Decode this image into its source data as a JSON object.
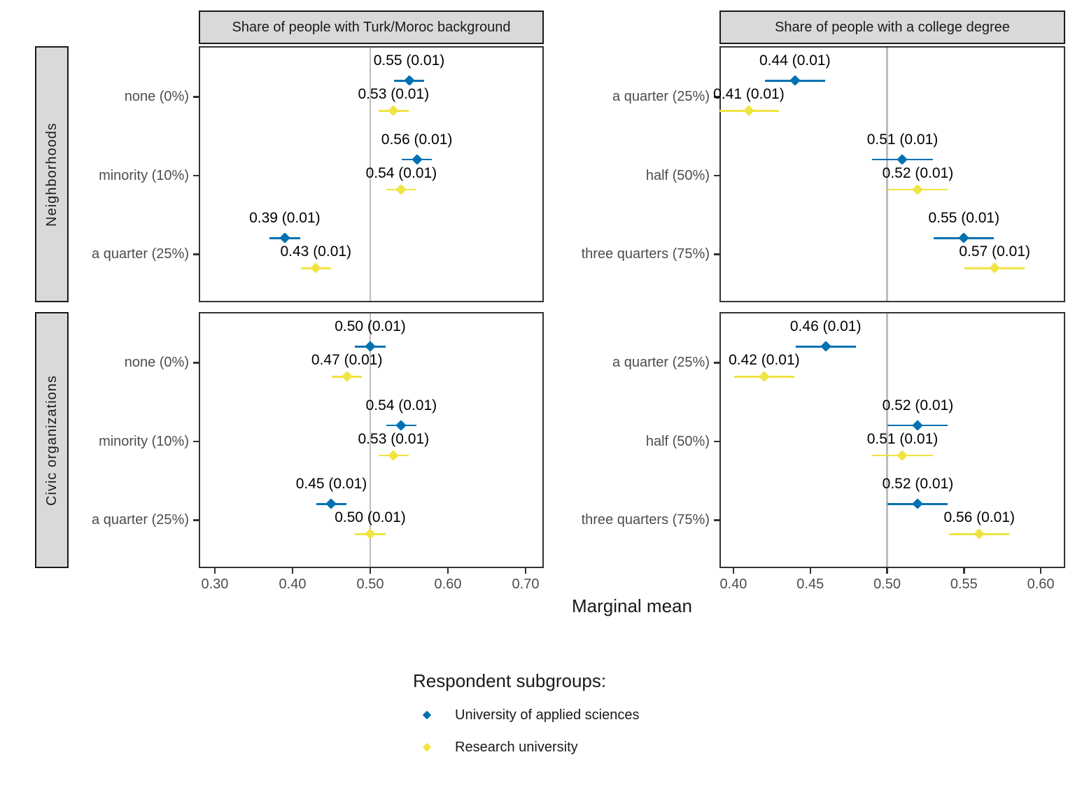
{
  "figure": {
    "x_axis_label": "Marginal mean",
    "facet_columns": [
      "Share of people with Turk/Moroc background",
      "Share of people with a college degree"
    ],
    "facet_rows": [
      "Neighborhoods",
      "Civic organizations"
    ],
    "colors": {
      "applied_sciences_blue": "#0072B2",
      "research_university_yellow": "#F0E442",
      "reference_line_gray": "#BDBDBD",
      "strip_fill": "#D9D9D9",
      "panel_border": "#333333",
      "axis_text": "#4D4D4D"
    },
    "legend": {
      "title": "Respondent subgroups:",
      "items": [
        {
          "label": "University of applied sciences",
          "color": "#0072B2"
        },
        {
          "label": "Research university",
          "color": "#F0E442"
        }
      ]
    }
  },
  "chart_data": [
    {
      "type": "scatter",
      "facet_row": "Neighborhoods",
      "facet_col": "Share of people with Turk/Moroc background",
      "categories": [
        "none (0%)",
        "minority (10%)",
        "a quarter (25%)"
      ],
      "xlim": [
        0.2793,
        0.7234
      ],
      "x_ticks": [
        0.3,
        0.4,
        0.5,
        0.6,
        0.7
      ],
      "x_tick_labels": [
        "0.30",
        "0.40",
        "0.50",
        "0.60",
        "0.70"
      ],
      "reference_line": 0.5,
      "series": [
        {
          "name": "University of applied sciences",
          "color": "#0072B2",
          "values": [
            0.55,
            0.56,
            0.39
          ],
          "se": [
            0.01,
            0.01,
            0.01
          ],
          "labels": [
            "0.55 (0.01)",
            "0.56 (0.01)",
            "0.39 (0.01)"
          ]
        },
        {
          "name": "Research university",
          "color": "#F0E442",
          "values": [
            0.53,
            0.54,
            0.43
          ],
          "se": [
            0.01,
            0.01,
            0.01
          ],
          "labels": [
            "0.53 (0.01)",
            "0.54 (0.01)",
            "0.43 (0.01)"
          ]
        }
      ]
    },
    {
      "type": "scatter",
      "facet_row": "Neighborhoods",
      "facet_col": "Share of people with a college degree",
      "categories": [
        "a quarter (25%)",
        "half (50%)",
        "three quarters (75%)"
      ],
      "xlim": [
        0.3909,
        0.6159
      ],
      "x_ticks": [
        0.4,
        0.45,
        0.5,
        0.55,
        0.6
      ],
      "x_tick_labels": [
        "0.40",
        "0.45",
        "0.50",
        "0.55",
        "0.60"
      ],
      "reference_line": 0.5,
      "series": [
        {
          "name": "University of applied sciences",
          "color": "#0072B2",
          "values": [
            0.44,
            0.51,
            0.55
          ],
          "se": [
            0.01,
            0.01,
            0.01
          ],
          "labels": [
            "0.44 (0.01)",
            "0.51 (0.01)",
            "0.55 (0.01)"
          ]
        },
        {
          "name": "Research university",
          "color": "#F0E442",
          "values": [
            0.41,
            0.52,
            0.57
          ],
          "se": [
            0.01,
            0.01,
            0.01
          ],
          "labels": [
            "0.41 (0.01)",
            "0.52 (0.01)",
            "0.57 (0.01)"
          ]
        }
      ]
    },
    {
      "type": "scatter",
      "facet_row": "Civic organizations",
      "facet_col": "Share of people with Turk/Moroc background",
      "categories": [
        "none (0%)",
        "minority (10%)",
        "a quarter (25%)"
      ],
      "xlim": [
        0.2793,
        0.7234
      ],
      "x_ticks": [
        0.3,
        0.4,
        0.5,
        0.6,
        0.7
      ],
      "x_tick_labels": [
        "0.30",
        "0.40",
        "0.50",
        "0.60",
        "0.70"
      ],
      "reference_line": 0.5,
      "series": [
        {
          "name": "University of applied sciences",
          "color": "#0072B2",
          "values": [
            0.5,
            0.54,
            0.45
          ],
          "se": [
            0.01,
            0.01,
            0.01
          ],
          "labels": [
            "0.50 (0.01)",
            "0.54 (0.01)",
            "0.45 (0.01)"
          ]
        },
        {
          "name": "Research university",
          "color": "#F0E442",
          "values": [
            0.47,
            0.53,
            0.5
          ],
          "se": [
            0.01,
            0.01,
            0.01
          ],
          "labels": [
            "0.47 (0.01)",
            "0.53 (0.01)",
            "0.50 (0.01)"
          ]
        }
      ]
    },
    {
      "type": "scatter",
      "facet_row": "Civic organizations",
      "facet_col": "Share of people with a college degree",
      "categories": [
        "a quarter (25%)",
        "half (50%)",
        "three quarters (75%)"
      ],
      "xlim": [
        0.3909,
        0.6159
      ],
      "x_ticks": [
        0.4,
        0.45,
        0.5,
        0.55,
        0.6
      ],
      "x_tick_labels": [
        "0.40",
        "0.45",
        "0.50",
        "0.55",
        "0.60"
      ],
      "reference_line": 0.5,
      "series": [
        {
          "name": "University of applied sciences",
          "color": "#0072B2",
          "values": [
            0.46,
            0.52,
            0.52
          ],
          "se": [
            0.01,
            0.01,
            0.01
          ],
          "labels": [
            "0.46 (0.01)",
            "0.52 (0.01)",
            "0.52 (0.01)"
          ]
        },
        {
          "name": "Research university",
          "color": "#F0E442",
          "values": [
            0.42,
            0.51,
            0.56
          ],
          "se": [
            0.01,
            0.01,
            0.01
          ],
          "labels": [
            "0.42 (0.01)",
            "0.51 (0.01)",
            "0.56 (0.01)"
          ]
        }
      ]
    }
  ]
}
